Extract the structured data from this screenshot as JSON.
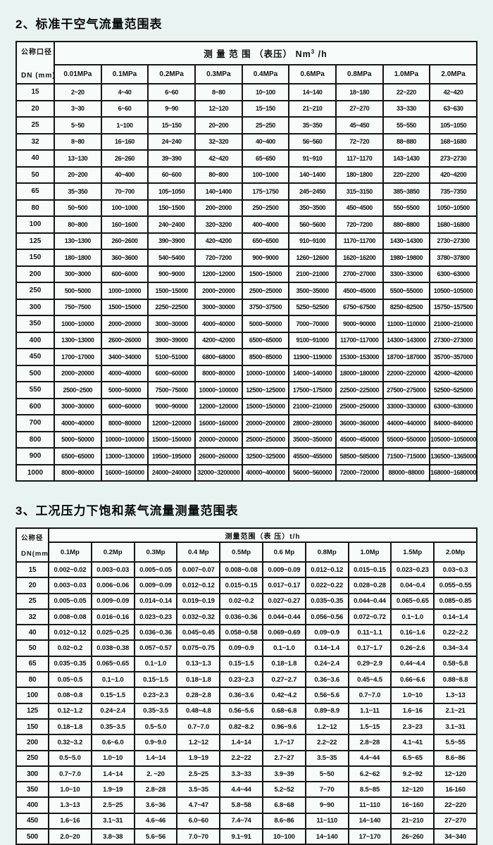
{
  "colors": {
    "page_bg": "#e9f3f2",
    "cell_bg": "#f7fbfa",
    "border": "#151515",
    "text": "#111111"
  },
  "air_table": {
    "title": "2、标准干空气流量范围表",
    "corner": {
      "top": "公称口径",
      "bottom": "DN (mm)"
    },
    "span_header": {
      "label": "测 量 范 围 （表压） Nm",
      "sup": "3",
      "suffix": " /h"
    },
    "columns": [
      "0.01MPa",
      "0.1MPa",
      "0.2MPa",
      "0.3MPa",
      "0.4MPa",
      "0.6MPa",
      "0.8MPa",
      "1.0MPa",
      "2.0MPa"
    ],
    "rows": [
      {
        "dn": "15",
        "values": [
          "2~20",
          "4~40",
          "6~60",
          "8~80",
          "10~100",
          "14~140",
          "18~180",
          "22~220",
          "42~420"
        ]
      },
      {
        "dn": "20",
        "values": [
          "3~30",
          "6~60",
          "9~90",
          "12~120",
          "15~150",
          "21~210",
          "27~270",
          "33~330",
          "63~630"
        ]
      },
      {
        "dn": "25",
        "values": [
          "5~50",
          "1~100",
          "15~150",
          "20~200",
          "25~250",
          "35~350",
          "45~450",
          "55~550",
          "105~1050"
        ]
      },
      {
        "dn": "32",
        "values": [
          "8~80",
          "16~160",
          "24~240",
          "32~320",
          "40~400",
          "56~560",
          "72~720",
          "88~880",
          "168~1680"
        ]
      },
      {
        "dn": "40",
        "values": [
          "13~130",
          "26~260",
          "39~390",
          "42~420",
          "65~650",
          "91~910",
          "117~1170",
          "143~1430",
          "273~2730"
        ]
      },
      {
        "dn": "50",
        "values": [
          "20~200",
          "40~400",
          "60~600",
          "80~800",
          "100~1000",
          "140~1400",
          "180~1800",
          "220~2200",
          "420~4200"
        ]
      },
      {
        "dn": "65",
        "values": [
          "35~350",
          "70~700",
          "105~1050",
          "140~1400",
          "175~1750",
          "245~2450",
          "315~3150",
          "385~3850",
          "735~7350"
        ]
      },
      {
        "dn": "80",
        "values": [
          "50~500",
          "100~1000",
          "150~1500",
          "200~2000",
          "250~2500",
          "350~3500",
          "450~4500",
          "550~5500",
          "1050~10500"
        ]
      },
      {
        "dn": "100",
        "values": [
          "80~800",
          "160~1600",
          "240~2400",
          "320~3200",
          "400~4000",
          "560~5600",
          "720~7200",
          "880~8800",
          "1680~16800"
        ]
      },
      {
        "dn": "125",
        "values": [
          "130~1300",
          "260~2600",
          "390~3900",
          "420~4200",
          "650~6500",
          "910~9100",
          "1170~11700",
          "1430~14300",
          "2730~27300"
        ]
      },
      {
        "dn": "150",
        "values": [
          "180~1800",
          "360~3600",
          "540~5400",
          "720~7200",
          "900~9000",
          "1260~12600",
          "1620~16200",
          "1980~19800",
          "3780~37800"
        ]
      },
      {
        "dn": "200",
        "values": [
          "300~3000",
          "600~6000",
          "900~9000",
          "1200~12000",
          "1500~15000",
          "2100~21000",
          "2700~27000",
          "3300~33000",
          "6300~63000"
        ]
      },
      {
        "dn": "250",
        "values": [
          "500~5000",
          "1000~10000",
          "1500~15000",
          "2000~20000",
          "2500~25000",
          "3500~35000",
          "4500~45000",
          "5500~55000",
          "10500~105000"
        ]
      },
      {
        "dn": "300",
        "values": [
          "750~7500",
          "1500~15000",
          "2250~22500",
          "3000~30000",
          "3750~37500",
          "5250~52500",
          "6750~67500",
          "8250~82500",
          "15750~157500"
        ]
      },
      {
        "dn": "350",
        "values": [
          "1000~10000",
          "2000~20000",
          "3000~30000",
          "4000~40000",
          "5000~50000",
          "7000~70000",
          "9000~90000",
          "11000~110000",
          "21000~210000"
        ]
      },
      {
        "dn": "400",
        "values": [
          "1300~13000",
          "2600~26000",
          "3900~39000",
          "4200~42000",
          "6500~65000",
          "9100~91000",
          "11700~117000",
          "14300~143000",
          "27300~273000"
        ]
      },
      {
        "dn": "450",
        "values": [
          "1700~17000",
          "3400~34000",
          "5100~51000",
          "6800~68000",
          "8500~85000",
          "11900~119000",
          "15300~153000",
          "18700~187000",
          "35700~357000"
        ]
      },
      {
        "dn": "500",
        "values": [
          "2000~20000",
          "4000~40000",
          "6000~60000",
          "8000~80000",
          "10000~100000",
          "14000~140000",
          "18000~180000",
          "22000~220000",
          "42000~420000"
        ]
      },
      {
        "dn": "550",
        "values": [
          "2500~2500",
          "5000~50000",
          "7500~75000",
          "10000~100000",
          "12500~125000",
          "17500~175000",
          "22500~225000",
          "27500~275000",
          "52500~525000"
        ]
      },
      {
        "dn": "600",
        "values": [
          "3000~30000",
          "6000~60000",
          "9000~90000",
          "12000~120000",
          "15000~150000",
          "21000~210000",
          "25000~250000",
          "33000~330000",
          "63000~630000"
        ]
      },
      {
        "dn": "700",
        "values": [
          "4000~40000",
          "8000~80000",
          "12000~120000",
          "16000~160000",
          "20000~200000",
          "28000~280000",
          "36000~360000",
          "44000~440000",
          "84000~840000"
        ]
      },
      {
        "dn": "800",
        "values": [
          "5000~50000",
          "10000~100000",
          "15000~150000",
          "20000~200000",
          "25000~250000",
          "35000~350000",
          "45000~450000",
          "55000~550000",
          "105000~1050000"
        ]
      },
      {
        "dn": "900",
        "values": [
          "6500~65000",
          "13000~130000",
          "19500~195000",
          "26000~260000",
          "32500~325000",
          "45500~455000",
          "58500~585000",
          "71500~715000",
          "136500~1365000"
        ]
      },
      {
        "dn": "1000",
        "values": [
          "8000~80000",
          "16000~160000",
          "24000~240000",
          "32000~3200000",
          "40000~400000",
          "56000~560000",
          "72000~720000",
          "88000~88000",
          "168000~1680000"
        ]
      }
    ]
  },
  "steam_table": {
    "title": "3、工况压力下饱和蒸气流量测量范围表",
    "corner": {
      "top": "公称径",
      "bottom": "DN(mm)"
    },
    "span_header": {
      "label": "测量范围（表 压）t/h"
    },
    "columns": [
      "0.1Mp",
      "0.2Mp",
      "0.3Mp",
      "0.4 Mp",
      "0.5Mp",
      "0.6 Mp",
      "0.8Mp",
      "1.0Mp",
      "1.5Mp",
      "2.0Mp"
    ],
    "rows": [
      {
        "dn": "15",
        "values": [
          "0.002~0.02",
          "0.003~0.03",
          "0.005~0.05",
          "0.007~0.07",
          "0.008~0.08",
          "0.009~0.09",
          "0.012~0.12",
          "0.015~0.15",
          "0.023~0.23",
          "0.03~0.3"
        ]
      },
      {
        "dn": "20",
        "values": [
          "0.003~0.03",
          "0.006~0.06",
          "0.009~0.09",
          "0.012~0.12",
          "0.015~0.15",
          "0.017~0.17",
          "0.022~0.22",
          "0.028~0.28",
          "0.04~0.4",
          "0.055~0.55"
        ]
      },
      {
        "dn": "25",
        "values": [
          "0.005~0.05",
          "0.009~0.09",
          "0.014~0.14",
          "0.019~0.19",
          "0.02~0.2",
          "0.027~0.27",
          "0.035~0.35",
          "0.044~0.44",
          "0.065~0.65",
          "0.085~0.85"
        ]
      },
      {
        "dn": "32",
        "values": [
          "0.008~0.08",
          "0.016~0.16",
          "0.023~0.23",
          "0.032~0.32",
          "0.036~0.36",
          "0.044~0.44",
          "0.056~0.56",
          "0.072~0.72",
          "0.1~1.0",
          "0.14~1.4"
        ]
      },
      {
        "dn": "40",
        "values": [
          "0.012~0.12",
          "0.025~0.25",
          "0.036~0.36",
          "0.045~0.45",
          "0.058~0.58",
          "0.069~0.69",
          "0.09~0.9",
          "0.11~1.1",
          "0.16~1.6",
          "0.22~2.2"
        ]
      },
      {
        "dn": "50",
        "values": [
          "0.02~0.2",
          "0.038~0.38",
          "0.057~0.57",
          "0.075~0.75",
          "0.09~0.9",
          "0.1~1.0",
          "0.14~1.4",
          "0.17~1.7",
          "0.26~2.6",
          "0.34~3.4"
        ]
      },
      {
        "dn": "65",
        "values": [
          "0.035~0.35",
          "0.065~0.65",
          "0.1~1.0",
          "0.13~1.3",
          "0.15~1.5",
          "0.18~1.8",
          "0.24~2.4",
          "0.29~2.9",
          "0.44~4.4",
          "0.58~5.8"
        ]
      },
      {
        "dn": "80",
        "values": [
          "0.05~0.5",
          "0.1~1.0",
          "0.15~1.5",
          "0.18~1.8",
          "0.23~2.3",
          "0.27~2.7",
          "0.36~3.6",
          "0.45~4.5",
          "0.66~6.6",
          "0.88~8.8"
        ]
      },
      {
        "dn": "100",
        "values": [
          "0.08~0.8",
          "0.15~1.5",
          "0.23~2.3",
          "0.28~2.8",
          "0.36~3.6",
          "0.42~4.2",
          "0.56~5.6",
          "0.7~7.0",
          "1.0~10",
          "1.3~13"
        ]
      },
      {
        "dn": "125",
        "values": [
          "0.12~1.2",
          "0.24~2.4",
          "0.35~3.5",
          "0.48~4.8",
          "0.56~5.6",
          "0.68~6.8",
          "0.89~8.9",
          "1.1~11",
          "1.6~16",
          "2.1~21"
        ]
      },
      {
        "dn": "150",
        "values": [
          "0.18~1.8",
          "0.35~3.5",
          "0.5~5.0",
          "0.7~7.0",
          "0.82~8.2",
          "0.96~9.6",
          "1.2~12",
          "1.5~15",
          "2.3~23",
          "3.1~31"
        ]
      },
      {
        "dn": "200",
        "values": [
          "0.32~3.2",
          "0.6~6.0",
          "0.9~9.0",
          "1.2~12",
          "1.4~14",
          "1.7~17",
          "2.2~22",
          "2.8~28",
          "4.1~41",
          "5.5~55"
        ]
      },
      {
        "dn": "250",
        "values": [
          "0.5~5.0",
          "1.0~10",
          "1.4~14",
          "1.9~19",
          "2.2~22",
          "2.7~27",
          "3.5~35",
          "4.4~44",
          "6.5~65",
          "8.6~86"
        ]
      },
      {
        "dn": "300",
        "values": [
          "0.7~7.0",
          "1.4~14",
          "2. ~20",
          "2.5~25",
          "3.3~33",
          "3.9~39",
          "5~50",
          "6.2~62",
          "9.2~92",
          "12~120"
        ]
      },
      {
        "dn": "350",
        "values": [
          "1.0~10",
          "1.9~19",
          "2.8~28",
          "3.5~35",
          "4.4~44",
          "5.2~52",
          "7~70",
          "8.5~85",
          "12~120",
          "16-160"
        ]
      },
      {
        "dn": "400",
        "values": [
          "1.3~13",
          "2.5~25",
          "3.6~36",
          "4.7~47",
          "5.8~58",
          "6.8~68",
          "9~90",
          "11~110",
          "16~160",
          "22~220"
        ]
      },
      {
        "dn": "450",
        "values": [
          "1.6~16",
          "3.1~31",
          "4.6~46",
          "6.0~60",
          "7.4~74",
          "8.6~86",
          "11~110",
          "14~140",
          "21~210",
          "27~270"
        ]
      },
      {
        "dn": "500",
        "values": [
          "2.0~20",
          "3.8~38",
          "5.6~56",
          "7.0~70",
          "9.1~91",
          "10~100",
          "14~140",
          "17~170",
          "26~260",
          "34~340"
        ]
      }
    ]
  }
}
